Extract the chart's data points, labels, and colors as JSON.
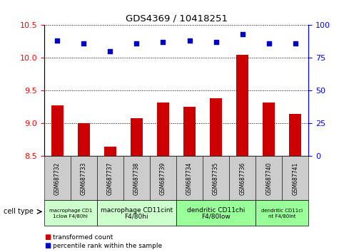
{
  "title": "GDS4369 / 10418251",
  "samples": [
    "GSM687732",
    "GSM687733",
    "GSM687737",
    "GSM687738",
    "GSM687739",
    "GSM687734",
    "GSM687735",
    "GSM687736",
    "GSM687740",
    "GSM687741"
  ],
  "transformed_counts": [
    9.28,
    9.0,
    8.65,
    9.08,
    9.32,
    9.25,
    9.38,
    10.05,
    9.32,
    9.15
  ],
  "percentile_ranks": [
    88,
    86,
    80,
    86,
    87,
    88,
    87,
    93,
    86,
    86
  ],
  "ylim_left": [
    8.5,
    10.5
  ],
  "ylim_right": [
    0,
    100
  ],
  "yticks_left": [
    8.5,
    9.0,
    9.5,
    10.0,
    10.5
  ],
  "yticks_right": [
    0,
    25,
    50,
    75,
    100
  ],
  "bar_color": "#cc0000",
  "dot_color": "#0000cc",
  "bar_width": 0.45,
  "group_definitions": [
    {
      "start": 0,
      "end": 2,
      "color": "#ccffcc",
      "label_line1": "macrophage CD1",
      "label_line2": "1clow F4/80hi"
    },
    {
      "start": 2,
      "end": 5,
      "color": "#ccffcc",
      "label_line1": "macrophage CD11cint",
      "label_line2": "F4/80hi"
    },
    {
      "start": 5,
      "end": 8,
      "color": "#99ff99",
      "label_line1": "dendritic CD11chi",
      "label_line2": "F4/80low"
    },
    {
      "start": 8,
      "end": 10,
      "color": "#99ff99",
      "label_line1": "dendritic CD11ci",
      "label_line2": "nt F4/80int"
    }
  ],
  "legend_bar_label": "transformed count",
  "legend_dot_label": "percentile rank within the sample",
  "cell_type_label": "cell type",
  "tick_box_color": "#cccccc"
}
